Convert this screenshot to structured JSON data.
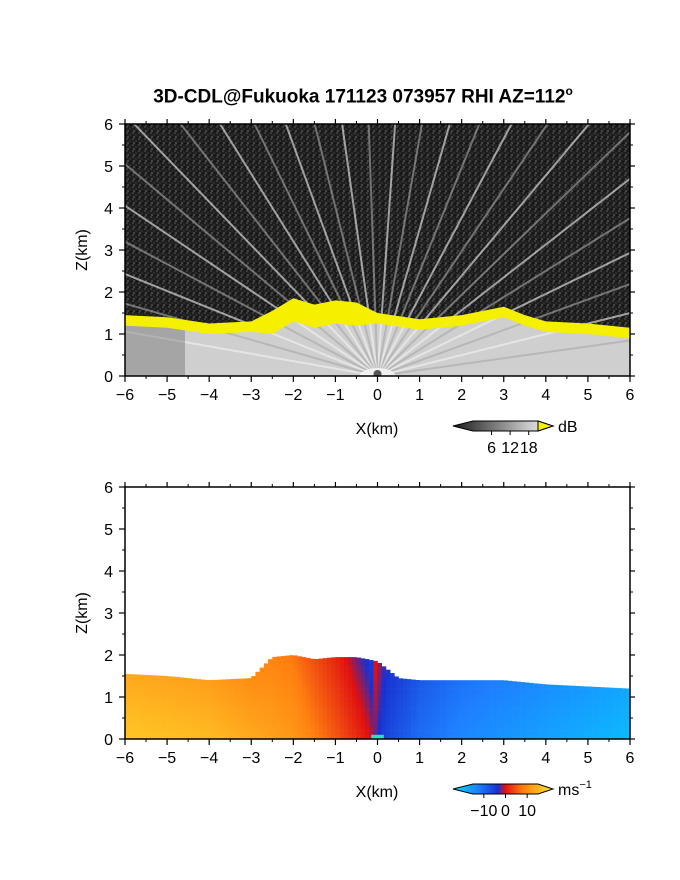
{
  "title": {
    "main": "3D-CDL@Fukuoka 171123 073957 RHI AZ=112",
    "sup": "o"
  },
  "chart_data": [
    {
      "type": "heatmap",
      "variable": "backscatter",
      "xlabel": "X(km)",
      "ylabel": "Z(km)",
      "xlim": [
        -6,
        6
      ],
      "ylim": [
        0,
        6
      ],
      "xticks": [
        "−6",
        "−5",
        "−4",
        "−3",
        "−2",
        "−1",
        "0",
        "1",
        "2",
        "3",
        "4",
        "5",
        "6"
      ],
      "yticks": [
        "0",
        "1",
        "2",
        "3",
        "4",
        "5",
        "6"
      ],
      "colorbar": {
        "unit": "dB",
        "ticks": [
          "6",
          "12",
          "18"
        ],
        "range": [
          0,
          21
        ]
      },
      "cloud_top_km": {
        "x": [
          -6,
          -5,
          -4,
          -3,
          -2.5,
          -2,
          -1.5,
          -1,
          -0.5,
          0,
          1,
          2,
          3,
          3.5,
          4,
          5,
          6
        ],
        "z": [
          1.45,
          1.4,
          1.25,
          1.3,
          1.55,
          1.85,
          1.7,
          1.8,
          1.75,
          1.5,
          1.35,
          1.45,
          1.65,
          1.45,
          1.3,
          1.25,
          1.15
        ]
      },
      "colors": {
        "echo": "#f5f000",
        "noise": "#202020",
        "clear": "#cfcfcf"
      }
    },
    {
      "type": "heatmap",
      "variable": "radial velocity",
      "xlabel": "X(km)",
      "ylabel": "Z(km)",
      "xlim": [
        -6,
        6
      ],
      "ylim": [
        0,
        6
      ],
      "xticks": [
        "−6",
        "−5",
        "−4",
        "−3",
        "−2",
        "−1",
        "0",
        "1",
        "2",
        "3",
        "4",
        "5",
        "6"
      ],
      "yticks": [
        "0",
        "1",
        "2",
        "3",
        "4",
        "5",
        "6"
      ],
      "colorbar": {
        "unit": "ms",
        "unit_sup": "−1",
        "ticks": [
          "−10",
          "0",
          "10"
        ],
        "range": [
          -15,
          15
        ]
      },
      "echo_top_km": {
        "x": [
          -6,
          -5,
          -4,
          -3,
          -2.5,
          -2,
          -1.5,
          -1,
          -0.5,
          0,
          0.5,
          1,
          2,
          3,
          4,
          5,
          6
        ],
        "z": [
          1.55,
          1.5,
          1.4,
          1.45,
          1.95,
          2.0,
          1.9,
          1.95,
          1.95,
          1.85,
          1.45,
          1.4,
          1.4,
          1.4,
          1.3,
          1.25,
          1.2
        ]
      },
      "velocity_ms": {
        "x": [
          -6,
          -4,
          -2,
          -1,
          -0.2,
          0.2,
          1,
          2,
          4,
          6
        ],
        "v": [
          12,
          11,
          8,
          4,
          0.5,
          -3,
          -6,
          -8,
          -10,
          -12
        ]
      }
    }
  ]
}
